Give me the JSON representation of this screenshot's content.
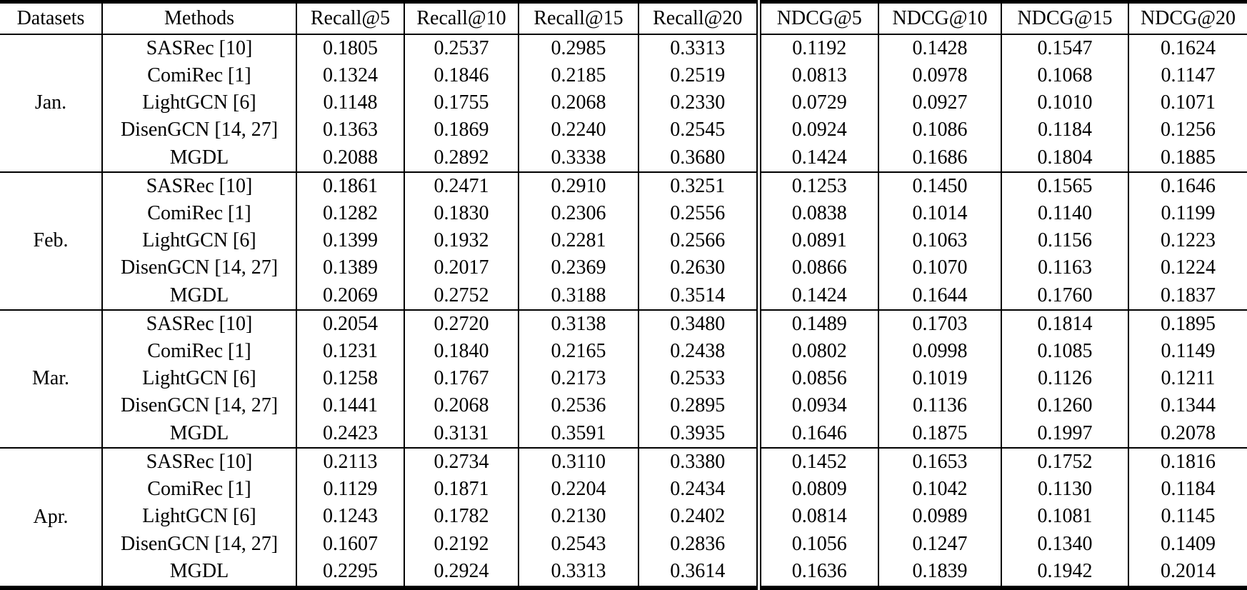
{
  "table": {
    "column_headers": [
      "Datasets",
      "Methods",
      "Recall@5",
      "Recall@10",
      "Recall@15",
      "Recall@20",
      "NDCG@5",
      "NDCG@10",
      "NDCG@15",
      "NDCG@20"
    ],
    "groups": [
      {
        "dataset": "Jan.",
        "rows": [
          {
            "method": "SASRec [10]",
            "emphasis": false,
            "values": [
              "0.1805",
              "0.2537",
              "0.2985",
              "0.3313",
              "0.1192",
              "0.1428",
              "0.1547",
              "0.1624"
            ]
          },
          {
            "method": "ComiRec [1]",
            "emphasis": false,
            "values": [
              "0.1324",
              "0.1846",
              "0.2185",
              "0.2519",
              "0.0813",
              "0.0978",
              "0.1068",
              "0.1147"
            ]
          },
          {
            "method": "LightGCN [6]",
            "emphasis": false,
            "values": [
              "0.1148",
              "0.1755",
              "0.2068",
              "0.2330",
              "0.0729",
              "0.0927",
              "0.1010",
              "0.1071"
            ]
          },
          {
            "method": "DisenGCN [14, 27]",
            "emphasis": false,
            "values": [
              "0.1363",
              "0.1869",
              "0.2240",
              "0.2545",
              "0.0924",
              "0.1086",
              "0.1184",
              "0.1256"
            ]
          },
          {
            "method": "MGDL",
            "emphasis": true,
            "values": [
              "0.2088",
              "0.2892",
              "0.3338",
              "0.3680",
              "0.1424",
              "0.1686",
              "0.1804",
              "0.1885"
            ]
          }
        ]
      },
      {
        "dataset": "Feb.",
        "rows": [
          {
            "method": "SASRec [10]",
            "emphasis": false,
            "values": [
              "0.1861",
              "0.2471",
              "0.2910",
              "0.3251",
              "0.1253",
              "0.1450",
              "0.1565",
              "0.1646"
            ]
          },
          {
            "method": "ComiRec [1]",
            "emphasis": false,
            "values": [
              "0.1282",
              "0.1830",
              "0.2306",
              "0.2556",
              "0.0838",
              "0.1014",
              "0.1140",
              "0.1199"
            ]
          },
          {
            "method": "LightGCN [6]",
            "emphasis": false,
            "values": [
              "0.1399",
              "0.1932",
              "0.2281",
              "0.2566",
              "0.0891",
              "0.1063",
              "0.1156",
              "0.1223"
            ]
          },
          {
            "method": "DisenGCN [14, 27]",
            "emphasis": false,
            "values": [
              "0.1389",
              "0.2017",
              "0.2369",
              "0.2630",
              "0.0866",
              "0.1070",
              "0.1163",
              "0.1224"
            ]
          },
          {
            "method": "MGDL",
            "emphasis": true,
            "values": [
              "0.2069",
              "0.2752",
              "0.3188",
              "0.3514",
              "0.1424",
              "0.1644",
              "0.1760",
              "0.1837"
            ]
          }
        ]
      },
      {
        "dataset": "Mar.",
        "rows": [
          {
            "method": "SASRec [10]",
            "emphasis": false,
            "values": [
              "0.2054",
              "0.2720",
              "0.3138",
              "0.3480",
              "0.1489",
              "0.1703",
              "0.1814",
              "0.1895"
            ]
          },
          {
            "method": "ComiRec [1]",
            "emphasis": false,
            "values": [
              "0.1231",
              "0.1840",
              "0.2165",
              "0.2438",
              "0.0802",
              "0.0998",
              "0.1085",
              "0.1149"
            ]
          },
          {
            "method": "LightGCN [6]",
            "emphasis": false,
            "values": [
              "0.1258",
              "0.1767",
              "0.2173",
              "0.2533",
              "0.0856",
              "0.1019",
              "0.1126",
              "0.1211"
            ]
          },
          {
            "method": "DisenGCN [14, 27]",
            "emphasis": false,
            "values": [
              "0.1441",
              "0.2068",
              "0.2536",
              "0.2895",
              "0.0934",
              "0.1136",
              "0.1260",
              "0.1344"
            ]
          },
          {
            "method": "MGDL",
            "emphasis": true,
            "values": [
              "0.2423",
              "0.3131",
              "0.3591",
              "0.3935",
              "0.1646",
              "0.1875",
              "0.1997",
              "0.2078"
            ]
          }
        ]
      },
      {
        "dataset": "Apr.",
        "rows": [
          {
            "method": "SASRec [10]",
            "emphasis": false,
            "values": [
              "0.2113",
              "0.2734",
              "0.3110",
              "0.3380",
              "0.1452",
              "0.1653",
              "0.1752",
              "0.1816"
            ]
          },
          {
            "method": "ComiRec [1]",
            "emphasis": false,
            "values": [
              "0.1129",
              "0.1871",
              "0.2204",
              "0.2434",
              "0.0809",
              "0.1042",
              "0.1130",
              "0.1184"
            ]
          },
          {
            "method": "LightGCN [6]",
            "emphasis": false,
            "values": [
              "0.1243",
              "0.1782",
              "0.2130",
              "0.2402",
              "0.0814",
              "0.0989",
              "0.1081",
              "0.1145"
            ]
          },
          {
            "method": "DisenGCN [14, 27]",
            "emphasis": false,
            "values": [
              "0.1607",
              "0.2192",
              "0.2543",
              "0.2836",
              "0.1056",
              "0.1247",
              "0.1340",
              "0.1409"
            ]
          },
          {
            "method": "MGDL",
            "emphasis": true,
            "values": [
              "0.2295",
              "0.2924",
              "0.3313",
              "0.3614",
              "0.1636",
              "0.1839",
              "0.1942",
              "0.2014"
            ]
          }
        ]
      }
    ],
    "colors": {
      "text": "#000000",
      "background": "#ffffff",
      "rule": "#000000"
    }
  }
}
